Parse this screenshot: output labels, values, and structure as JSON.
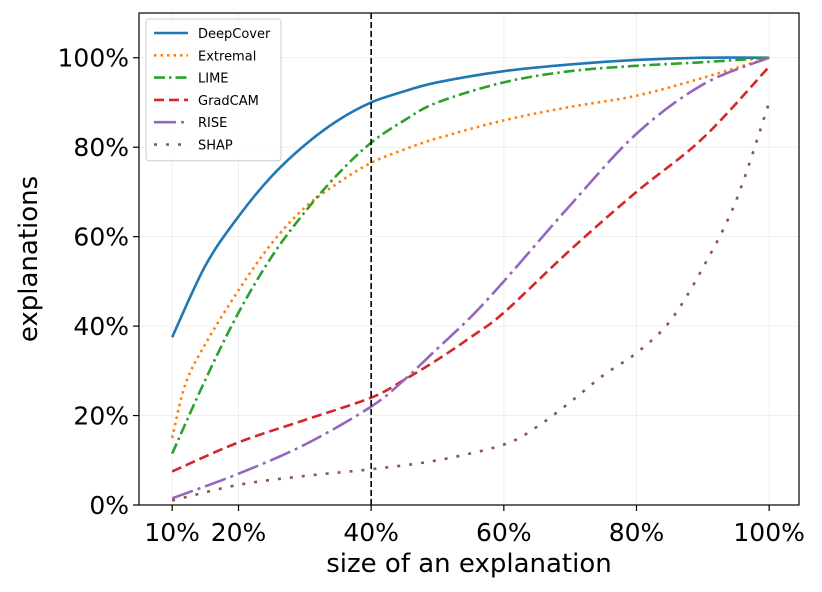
{
  "chart_data": {
    "type": "line",
    "title": "",
    "xlabel": "size of an explanation",
    "ylabel": "explanations",
    "xlim": [
      0.05,
      1.045
    ],
    "ylim": [
      0,
      1.1
    ],
    "x_ticks": [
      {
        "value": 0.1,
        "label": "10%"
      },
      {
        "value": 0.2,
        "label": "20%"
      },
      {
        "value": 0.4,
        "label": "40%"
      },
      {
        "value": 0.6,
        "label": "60%"
      },
      {
        "value": 0.8,
        "label": "80%"
      },
      {
        "value": 1.0,
        "label": "100%"
      }
    ],
    "y_ticks": [
      {
        "value": 0.0,
        "label": "0%"
      },
      {
        "value": 0.2,
        "label": "20%"
      },
      {
        "value": 0.4,
        "label": "40%"
      },
      {
        "value": 0.6,
        "label": "60%"
      },
      {
        "value": 0.8,
        "label": "80%"
      },
      {
        "value": 1.0,
        "label": "100%"
      }
    ],
    "grid": true,
    "legend_position": "top-left",
    "reference_line": {
      "x": 0.4,
      "style": "dashed",
      "color": "#000000"
    },
    "series": [
      {
        "name": "DeepCover",
        "color": "#1f77b4",
        "dash": "solid",
        "x": [
          0.1,
          0.15,
          0.2,
          0.25,
          0.3,
          0.35,
          0.4,
          0.45,
          0.5,
          0.6,
          0.7,
          0.8,
          0.9,
          1.0
        ],
        "y": [
          0.375,
          0.535,
          0.645,
          0.735,
          0.805,
          0.86,
          0.9,
          0.925,
          0.945,
          0.97,
          0.985,
          0.995,
          1.0,
          1.0
        ]
      },
      {
        "name": "Extremal",
        "color": "#ff7f0e",
        "dash": "dotted",
        "x": [
          0.1,
          0.12,
          0.15,
          0.2,
          0.25,
          0.3,
          0.35,
          0.4,
          0.45,
          0.5,
          0.6,
          0.7,
          0.8,
          0.9,
          1.0
        ],
        "y": [
          0.15,
          0.27,
          0.36,
          0.48,
          0.585,
          0.665,
          0.72,
          0.765,
          0.795,
          0.82,
          0.86,
          0.89,
          0.915,
          0.955,
          1.0
        ]
      },
      {
        "name": "LIME",
        "color": "#2ca02c",
        "dash": "dashdot",
        "x": [
          0.1,
          0.15,
          0.2,
          0.25,
          0.3,
          0.35,
          0.4,
          0.45,
          0.5,
          0.6,
          0.7,
          0.8,
          0.9,
          1.0
        ],
        "y": [
          0.115,
          0.28,
          0.43,
          0.555,
          0.655,
          0.74,
          0.81,
          0.86,
          0.9,
          0.945,
          0.97,
          0.982,
          0.99,
          1.0
        ]
      },
      {
        "name": "GradCAM",
        "color": "#d62728",
        "dash": "dashed",
        "x": [
          0.1,
          0.2,
          0.3,
          0.4,
          0.45,
          0.5,
          0.55,
          0.6,
          0.7,
          0.8,
          0.9,
          1.0
        ],
        "y": [
          0.075,
          0.14,
          0.19,
          0.24,
          0.28,
          0.325,
          0.375,
          0.43,
          0.57,
          0.7,
          0.82,
          0.98
        ]
      },
      {
        "name": "RISE",
        "color": "#9467bd",
        "dash": "longdashdot",
        "x": [
          0.1,
          0.2,
          0.3,
          0.4,
          0.45,
          0.5,
          0.55,
          0.6,
          0.7,
          0.8,
          0.9,
          1.0
        ],
        "y": [
          0.015,
          0.07,
          0.135,
          0.22,
          0.28,
          0.35,
          0.42,
          0.5,
          0.67,
          0.83,
          0.94,
          1.0
        ]
      },
      {
        "name": "SHAP",
        "color": "#8c564b",
        "dash": "sparsedot",
        "x": [
          0.1,
          0.2,
          0.3,
          0.4,
          0.5,
          0.6,
          0.65,
          0.7,
          0.75,
          0.8,
          0.85,
          0.9,
          0.95,
          1.0
        ],
        "y": [
          0.01,
          0.045,
          0.065,
          0.08,
          0.1,
          0.135,
          0.175,
          0.23,
          0.29,
          0.34,
          0.41,
          0.53,
          0.68,
          0.9
        ]
      }
    ]
  }
}
